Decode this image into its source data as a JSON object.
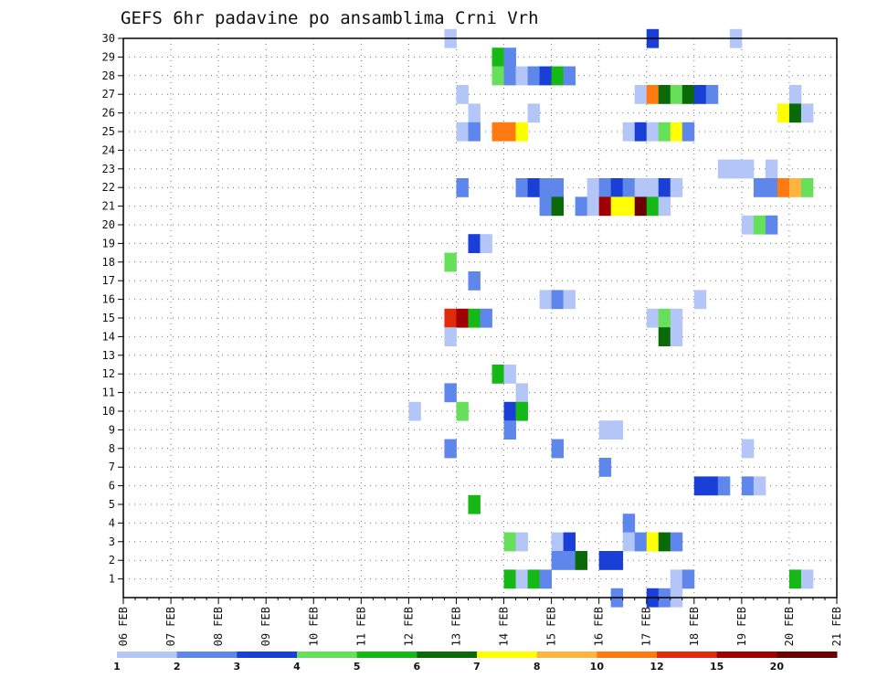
{
  "chart_data": {
    "type": "heatmap",
    "title": "GEFS 6hr padavine po ansamblima Crni Vrh",
    "x_ticks": [
      "06 FEB",
      "07 FEB",
      "08 FEB",
      "09 FEB",
      "10 FEB",
      "11 FEB",
      "12 FEB",
      "13 FEB",
      "14 FEB",
      "15 FEB",
      "16 FEB",
      "17 FEB",
      "18 FEB",
      "19 FEB",
      "20 FEB",
      "21 FEB"
    ],
    "x_range": [
      "06 FEB",
      "21 FEB"
    ],
    "x_step": "6hr",
    "y_ticks": [
      1,
      2,
      3,
      4,
      5,
      6,
      7,
      8,
      9,
      10,
      11,
      12,
      13,
      14,
      15,
      16,
      17,
      18,
      19,
      20,
      21,
      22,
      23,
      24,
      25,
      26,
      27,
      28,
      29,
      30
    ],
    "y_range": [
      0,
      30
    ],
    "grid": true,
    "colorbar": {
      "position": "bottom",
      "levels": [
        "1",
        "2",
        "3",
        "4",
        "5",
        "6",
        "7",
        "8",
        "10",
        "12",
        "15",
        "20"
      ],
      "colors": [
        "#b3c6f7",
        "#5f86ea",
        "#1a3fd6",
        "#66e05a",
        "#16b816",
        "#0a6a0a",
        "#ffff00",
        "#ffb340",
        "#ff7a10",
        "#e02a0a",
        "#a00000",
        "#6b0000"
      ]
    },
    "cells_note": "each cell: [member, day_index(0=06 FEB), step(0-3 of 6hr), color_class]",
    "cells": [
      [
        30,
        6,
        3,
        1
      ],
      [
        30,
        11,
        0,
        3
      ],
      [
        30,
        12,
        3,
        1
      ],
      [
        29,
        7,
        3,
        5
      ],
      [
        29,
        8,
        0,
        2
      ],
      [
        28,
        7,
        3,
        4
      ],
      [
        28,
        8,
        0,
        2
      ],
      [
        28,
        8,
        1,
        1
      ],
      [
        28,
        8,
        2,
        2
      ],
      [
        28,
        8,
        3,
        3
      ],
      [
        28,
        9,
        0,
        5
      ],
      [
        28,
        9,
        1,
        2
      ],
      [
        27,
        7,
        0,
        1
      ],
      [
        27,
        10,
        3,
        1
      ],
      [
        27,
        11,
        0,
        9
      ],
      [
        27,
        11,
        1,
        6
      ],
      [
        27,
        11,
        2,
        4
      ],
      [
        27,
        11,
        3,
        6
      ],
      [
        27,
        12,
        0,
        3
      ],
      [
        27,
        12,
        1,
        2
      ],
      [
        27,
        14,
        0,
        1
      ],
      [
        26,
        7,
        1,
        1
      ],
      [
        26,
        8,
        2,
        1
      ],
      [
        26,
        13,
        3,
        7
      ],
      [
        26,
        14,
        0,
        6
      ],
      [
        26,
        14,
        1,
        1
      ],
      [
        25,
        7,
        0,
        1
      ],
      [
        25,
        7,
        1,
        2
      ],
      [
        25,
        7,
        3,
        9
      ],
      [
        25,
        8,
        0,
        9
      ],
      [
        25,
        8,
        1,
        7
      ],
      [
        25,
        10,
        2,
        1
      ],
      [
        25,
        10,
        3,
        3
      ],
      [
        25,
        11,
        0,
        1
      ],
      [
        25,
        11,
        1,
        4
      ],
      [
        25,
        11,
        2,
        7
      ],
      [
        25,
        11,
        3,
        2
      ],
      [
        23,
        12,
        2,
        1
      ],
      [
        23,
        12,
        3,
        1
      ],
      [
        23,
        13,
        0,
        1
      ],
      [
        23,
        13,
        2,
        1
      ],
      [
        22,
        7,
        0,
        2
      ],
      [
        22,
        8,
        1,
        2
      ],
      [
        22,
        8,
        2,
        3
      ],
      [
        22,
        8,
        3,
        2
      ],
      [
        22,
        9,
        0,
        2
      ],
      [
        22,
        9,
        3,
        1
      ],
      [
        22,
        10,
        0,
        2
      ],
      [
        22,
        10,
        1,
        3
      ],
      [
        22,
        10,
        2,
        2
      ],
      [
        22,
        10,
        3,
        1
      ],
      [
        22,
        11,
        0,
        1
      ],
      [
        22,
        11,
        1,
        3
      ],
      [
        22,
        11,
        2,
        1
      ],
      [
        22,
        13,
        1,
        2
      ],
      [
        22,
        13,
        2,
        2
      ],
      [
        22,
        13,
        3,
        9
      ],
      [
        22,
        14,
        0,
        8
      ],
      [
        22,
        14,
        1,
        4
      ],
      [
        21,
        8,
        3,
        2
      ],
      [
        21,
        9,
        0,
        6
      ],
      [
        21,
        9,
        2,
        2
      ],
      [
        21,
        9,
        3,
        1
      ],
      [
        21,
        10,
        0,
        11
      ],
      [
        21,
        10,
        1,
        7
      ],
      [
        21,
        10,
        2,
        7
      ],
      [
        21,
        10,
        3,
        12
      ],
      [
        21,
        11,
        0,
        5
      ],
      [
        21,
        11,
        1,
        1
      ],
      [
        20,
        13,
        0,
        1
      ],
      [
        20,
        13,
        1,
        4
      ],
      [
        20,
        13,
        2,
        2
      ],
      [
        19,
        7,
        1,
        3
      ],
      [
        19,
        7,
        2,
        1
      ],
      [
        18,
        6,
        3,
        4
      ],
      [
        17,
        7,
        1,
        2
      ],
      [
        16,
        8,
        3,
        1
      ],
      [
        16,
        9,
        0,
        2
      ],
      [
        16,
        9,
        1,
        1
      ],
      [
        16,
        12,
        0,
        1
      ],
      [
        15,
        6,
        3,
        10
      ],
      [
        15,
        7,
        0,
        11
      ],
      [
        15,
        7,
        1,
        5
      ],
      [
        15,
        7,
        2,
        2
      ],
      [
        15,
        11,
        0,
        1
      ],
      [
        15,
        11,
        1,
        4
      ],
      [
        15,
        11,
        2,
        1
      ],
      [
        14,
        6,
        3,
        1
      ],
      [
        14,
        11,
        1,
        6
      ],
      [
        14,
        11,
        2,
        1
      ],
      [
        12,
        7,
        3,
        5
      ],
      [
        12,
        8,
        0,
        1
      ],
      [
        11,
        6,
        3,
        2
      ],
      [
        11,
        8,
        1,
        1
      ],
      [
        10,
        6,
        0,
        1
      ],
      [
        10,
        7,
        0,
        4
      ],
      [
        10,
        8,
        0,
        3
      ],
      [
        10,
        8,
        1,
        5
      ],
      [
        9,
        8,
        0,
        2
      ],
      [
        9,
        10,
        0,
        1
      ],
      [
        9,
        10,
        1,
        1
      ],
      [
        8,
        6,
        3,
        2
      ],
      [
        8,
        9,
        0,
        2
      ],
      [
        8,
        13,
        0,
        1
      ],
      [
        7,
        10,
        0,
        2
      ],
      [
        6,
        12,
        0,
        3
      ],
      [
        6,
        12,
        1,
        3
      ],
      [
        6,
        12,
        2,
        2
      ],
      [
        6,
        13,
        0,
        2
      ],
      [
        6,
        13,
        1,
        1
      ],
      [
        5,
        7,
        1,
        5
      ],
      [
        4,
        10,
        2,
        2
      ],
      [
        3,
        8,
        0,
        4
      ],
      [
        3,
        8,
        1,
        1
      ],
      [
        3,
        9,
        0,
        1
      ],
      [
        3,
        9,
        1,
        3
      ],
      [
        3,
        10,
        2,
        1
      ],
      [
        3,
        10,
        3,
        2
      ],
      [
        3,
        11,
        0,
        7
      ],
      [
        3,
        11,
        1,
        6
      ],
      [
        3,
        11,
        2,
        2
      ],
      [
        2,
        9,
        0,
        2
      ],
      [
        2,
        9,
        1,
        2
      ],
      [
        2,
        9,
        2,
        6
      ],
      [
        2,
        10,
        0,
        3
      ],
      [
        2,
        10,
        1,
        3
      ],
      [
        1,
        8,
        0,
        5
      ],
      [
        1,
        8,
        1,
        1
      ],
      [
        1,
        8,
        2,
        5
      ],
      [
        1,
        8,
        3,
        2
      ],
      [
        1,
        11,
        2,
        1
      ],
      [
        1,
        11,
        3,
        2
      ],
      [
        1,
        14,
        0,
        5
      ],
      [
        1,
        14,
        1,
        1
      ],
      [
        0,
        10,
        1,
        2
      ],
      [
        0,
        11,
        0,
        3
      ],
      [
        0,
        11,
        1,
        2
      ],
      [
        0,
        11,
        2,
        1
      ]
    ]
  }
}
